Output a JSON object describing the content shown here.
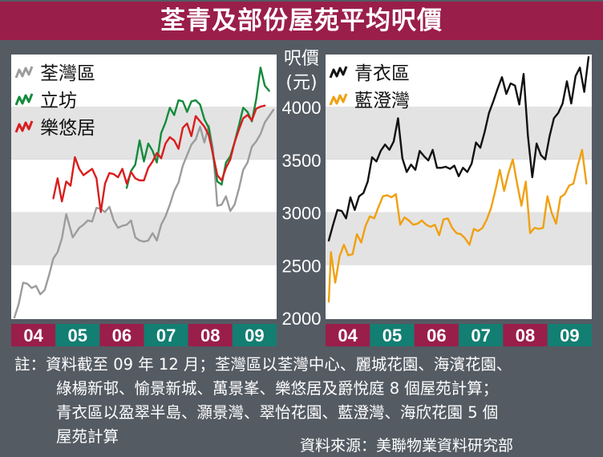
{
  "title": "荃青及部份屋苑平均呎價",
  "colors": {
    "title_bar": "#9a1e4a",
    "background": "#545b63",
    "band_white": "#ffffff",
    "band_grey": "#e3e3e3",
    "axis_badge_crimson": "#9a1e4a",
    "axis_badge_teal": "#137e72",
    "tsuen_wan": "#9c9c9c",
    "lap_fong": "#148a3c",
    "lok_yau_kui": "#d81e1e",
    "tsing_yi": "#111111",
    "lam_tang_wan": "#f0a010"
  },
  "chart_data": {
    "type": "line",
    "y_axis_label": [
      "呎價",
      "(元)"
    ],
    "y_ticks": [
      2000,
      2500,
      3000,
      3500,
      4000
    ],
    "ylim": [
      2000,
      4000
    ],
    "x_categories": [
      "04",
      "05",
      "06",
      "07",
      "08",
      "09"
    ],
    "x_range": [
      2004.0,
      2010.0
    ],
    "grid": "horizontal bands",
    "panels": [
      {
        "name": "left",
        "legend": "top-left",
        "series": [
          {
            "name": "荃灣區",
            "color": "tsuen_wan",
            "x": [
              2004.0,
              2004.1,
              2004.2,
              2004.3,
              2004.4,
              2004.5,
              2004.6,
              2004.7,
              2004.8,
              2004.9,
              2005.0,
              2005.1,
              2005.2,
              2005.35,
              2005.5,
              2005.6,
              2005.7,
              2005.8,
              2005.9,
              2006.0,
              2006.1,
              2006.2,
              2006.3,
              2006.4,
              2006.5,
              2006.6,
              2006.7,
              2006.8,
              2006.9,
              2007.0,
              2007.1,
              2007.2,
              2007.3,
              2007.4,
              2007.5,
              2007.6,
              2007.7,
              2007.8,
              2007.9,
              2008.0,
              2008.1,
              2008.2,
              2008.3,
              2008.4,
              2008.5,
              2008.6,
              2008.7,
              2008.8,
              2008.9,
              2009.0,
              2009.1,
              2009.2,
              2009.3,
              2009.4,
              2009.5,
              2009.6,
              2009.7,
              2009.8,
              2009.9,
              2010.0
            ],
            "y": [
              2000,
              2130,
              2330,
              2320,
              2280,
              2300,
              2220,
              2260,
              2400,
              2560,
              2620,
              2750,
              2980,
              2760,
              2850,
              2880,
              2920,
              2910,
              3040,
              3030,
              3000,
              3050,
              2920,
              2850,
              2870,
              2880,
              2920,
              2760,
              2730,
              2720,
              2730,
              2800,
              2730,
              2880,
              2960,
              3070,
              3200,
              3280,
              3440,
              3540,
              3640,
              3690,
              3810,
              3660,
              3820,
              3600,
              3060,
              3070,
              3150,
              3010,
              3070,
              3220,
              3400,
              3470,
              3620,
              3670,
              3740,
              3850,
              3910,
              3970
            ]
          },
          {
            "name": "立坊",
            "color": "lap_fong",
            "x": [
              2006.6,
              2006.7,
              2006.8,
              2006.9,
              2007.0,
              2007.1,
              2007.2,
              2007.3,
              2007.4,
              2007.5,
              2007.6,
              2007.7,
              2007.8,
              2007.9,
              2008.0,
              2008.1,
              2008.2,
              2008.3,
              2008.4,
              2008.5,
              2008.6,
              2008.7,
              2008.8,
              2008.9,
              2009.0,
              2009.1,
              2009.2,
              2009.3,
              2009.4,
              2009.5,
              2009.6,
              2009.7,
              2009.8,
              2009.9
            ],
            "y": [
              3230,
              3390,
              3450,
              3680,
              3480,
              3650,
              3580,
              3470,
              3750,
              3850,
              3990,
              3920,
              4060,
              4050,
              3950,
              4050,
              4060,
              4020,
              3880,
              3800,
              3540,
              3290,
              3260,
              3470,
              3530,
              3660,
              3820,
              3990,
              3950,
              3860,
              4070,
              4370,
              4200,
              4150
            ]
          },
          {
            "name": "樂悠居",
            "color": "lok_yau_kui",
            "x": [
              2004.9,
              2005.0,
              2005.1,
              2005.2,
              2005.3,
              2005.4,
              2005.5,
              2005.6,
              2005.7,
              2005.8,
              2005.9,
              2006.0,
              2006.1,
              2006.2,
              2006.3,
              2006.4,
              2006.5,
              2006.6,
              2006.7,
              2006.8,
              2006.9,
              2007.0,
              2007.1,
              2007.2,
              2007.3,
              2007.4,
              2007.5,
              2007.6,
              2007.7,
              2007.8,
              2007.9,
              2008.0,
              2008.1,
              2008.2,
              2008.3,
              2008.4,
              2008.5,
              2008.6,
              2008.7,
              2008.8,
              2008.9,
              2009.0,
              2009.1,
              2009.2,
              2009.3,
              2009.4,
              2009.5,
              2009.6,
              2009.7,
              2009.8
            ],
            "y": [
              3130,
              3320,
              3100,
              3290,
              3250,
              3520,
              3410,
              3350,
              3380,
              3410,
              3320,
              3000,
              3270,
              3370,
              3360,
              3330,
              3410,
              3270,
              3380,
              3320,
              3300,
              3300,
              3420,
              3480,
              3560,
              3510,
              3650,
              3710,
              3680,
              3600,
              3800,
              3840,
              3720,
              3910,
              3860,
              3810,
              3730,
              3550,
              3350,
              3300,
              3420,
              3500,
              3660,
              3780,
              3890,
              3920,
              3870,
              3980,
              4000,
              4010
            ]
          }
        ]
      },
      {
        "name": "right",
        "legend": "top-left",
        "series": [
          {
            "name": "青衣區",
            "color": "tsing_yi",
            "x": [
              2004.0,
              2004.1,
              2004.2,
              2004.3,
              2004.4,
              2004.5,
              2004.6,
              2004.7,
              2004.8,
              2004.9,
              2005.0,
              2005.1,
              2005.2,
              2005.3,
              2005.4,
              2005.5,
              2005.6,
              2005.7,
              2005.8,
              2005.9,
              2006.0,
              2006.1,
              2006.2,
              2006.3,
              2006.4,
              2006.5,
              2006.6,
              2006.7,
              2006.8,
              2006.9,
              2007.0,
              2007.1,
              2007.2,
              2007.3,
              2007.4,
              2007.5,
              2007.6,
              2007.7,
              2007.8,
              2007.9,
              2008.0,
              2008.1,
              2008.2,
              2008.3,
              2008.4,
              2008.5,
              2008.6,
              2008.7,
              2008.8,
              2008.9,
              2009.0,
              2009.1,
              2009.2,
              2009.3,
              2009.4,
              2009.5,
              2009.6,
              2009.7,
              2009.8,
              2009.9,
              2010.0
            ],
            "y": [
              2730,
              2880,
              3020,
              3010,
              2940,
              3140,
              3020,
              3150,
              3180,
              3290,
              3520,
              3480,
              3580,
              3640,
              3590,
              3670,
              3890,
              3510,
              3380,
              3450,
              3400,
              3580,
              3530,
              3490,
              3590,
              3420,
              3420,
              3430,
              3410,
              3440,
              3340,
              3420,
              3380,
              3460,
              3660,
              3610,
              3760,
              3940,
              4050,
              4170,
              4280,
              4120,
              4220,
              4200,
              4020,
              4310,
              3720,
              3330,
              3650,
              3540,
              3500,
              3720,
              3890,
              3940,
              4030,
              4240,
              4030,
              4290,
              4370,
              4140,
              4470
            ]
          },
          {
            "name": "藍澄灣",
            "color": "lam_tang_wan",
            "x": [
              2004.0,
              2004.05,
              2004.15,
              2004.25,
              2004.35,
              2004.45,
              2004.55,
              2004.65,
              2004.75,
              2004.85,
              2004.95,
              2005.05,
              2005.15,
              2005.25,
              2005.35,
              2005.45,
              2005.55,
              2005.65,
              2005.75,
              2005.85,
              2005.95,
              2006.05,
              2006.15,
              2006.25,
              2006.35,
              2006.45,
              2006.55,
              2006.65,
              2006.75,
              2006.85,
              2006.95,
              2007.05,
              2007.15,
              2007.25,
              2007.35,
              2007.45,
              2007.55,
              2007.65,
              2007.75,
              2007.85,
              2007.95,
              2008.05,
              2008.15,
              2008.25,
              2008.35,
              2008.45,
              2008.55,
              2008.65,
              2008.75,
              2008.85,
              2008.95,
              2009.05,
              2009.15,
              2009.25,
              2009.35,
              2009.45,
              2009.55,
              2009.65,
              2009.75,
              2009.85,
              2009.95
            ],
            "y": [
              2150,
              2620,
              2330,
              2580,
              2690,
              2590,
              2600,
              2790,
              2710,
              2870,
              2960,
              2940,
              3050,
              3150,
              3160,
              3140,
              3170,
              2880,
              2950,
              2920,
              2880,
              2890,
              2920,
              2880,
              2860,
              2880,
              2780,
              2930,
              2940,
              2850,
              2800,
              2790,
              2750,
              2690,
              2840,
              2820,
              2850,
              2930,
              3040,
              3210,
              3400,
              3200,
              3370,
              3500,
              3270,
              3060,
              3290,
              2800,
              2850,
              2840,
              2850,
              3150,
              2990,
              2890,
              3140,
              3170,
              3250,
              3270,
              3440,
              3590,
              3270
            ]
          }
        ]
      }
    ]
  },
  "footnote": {
    "lines": [
      "註：資料截至 09 年 12 月；荃灣區以荃灣中心、麗城花園、海濱花園、",
      "綠楊新邨、愉景新城、萬景峯、樂悠居及爵悅庭 8 個屋苑計算；",
      "青衣區以盈翠半島、灝景灣、翠怡花園、藍澄灣、海欣花園 5 個",
      "屋苑計算"
    ],
    "source": "資料來源：美聯物業資料研究部"
  }
}
